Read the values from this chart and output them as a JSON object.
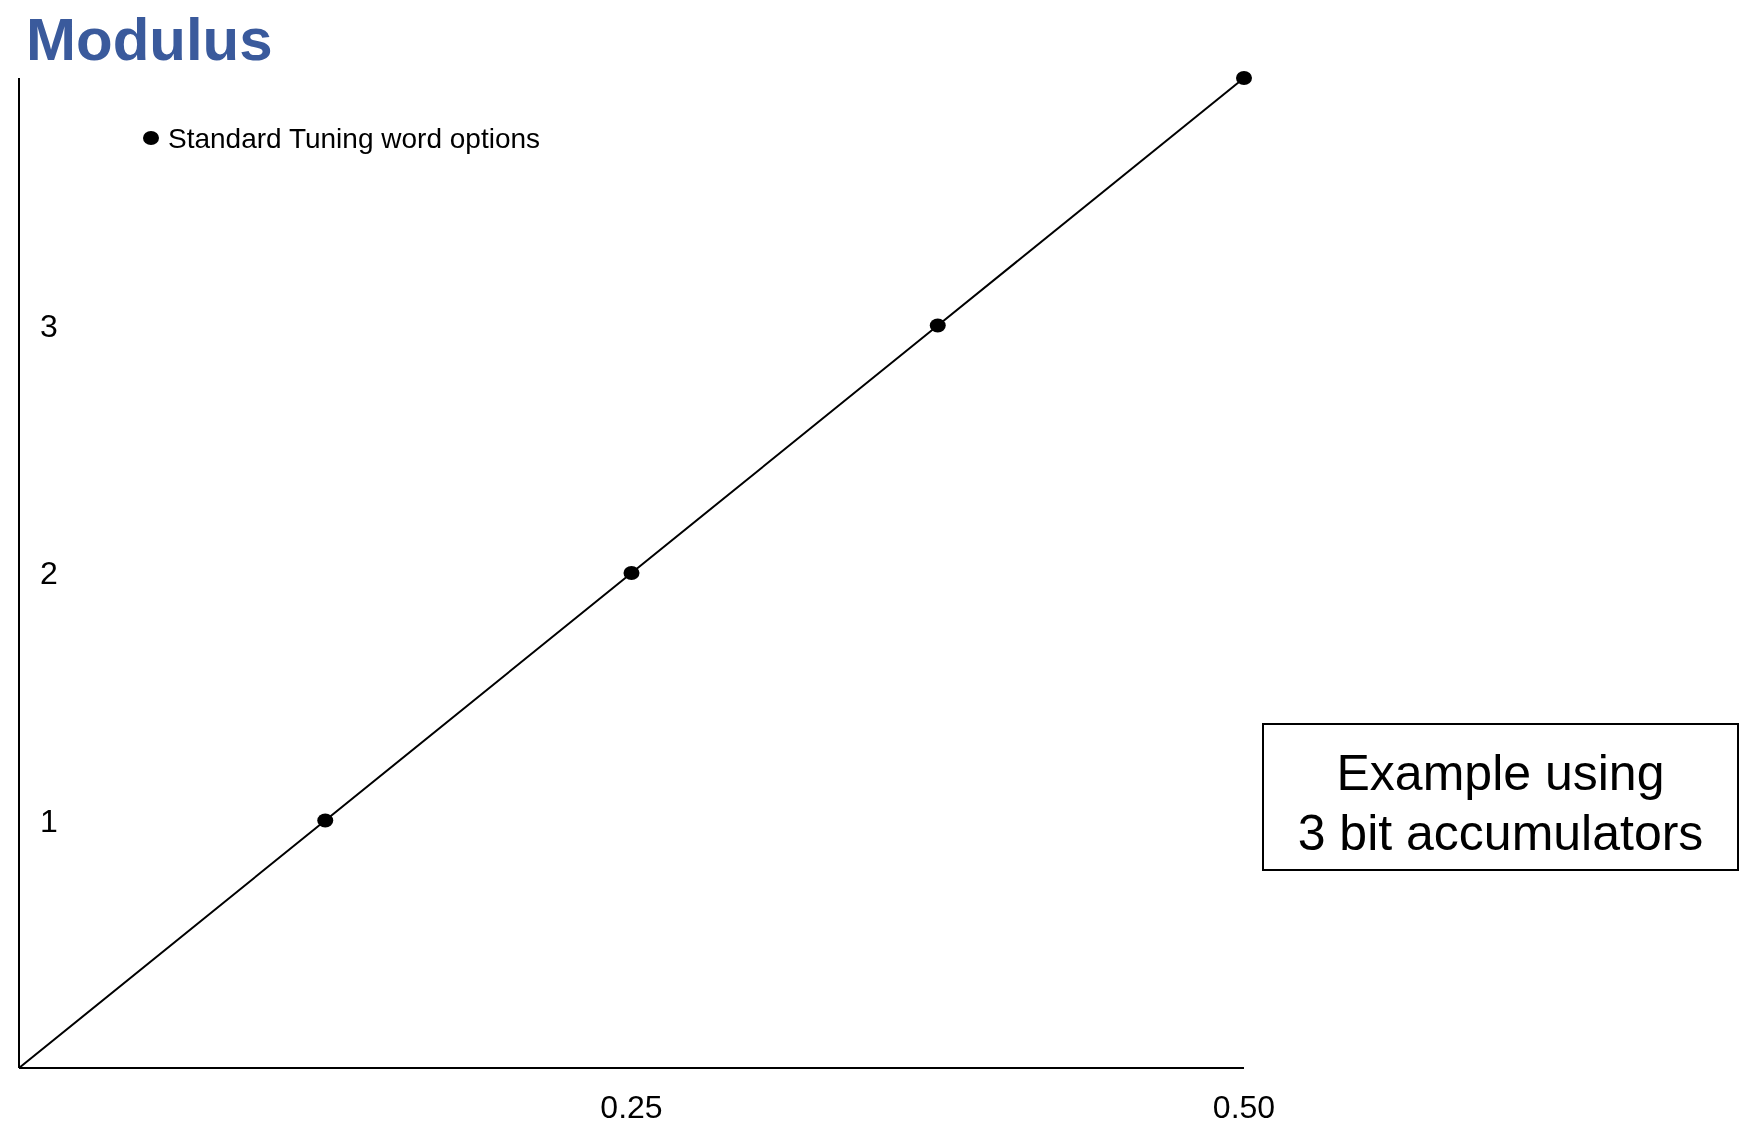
{
  "chart_data": {
    "type": "scatter",
    "title": "Modulus",
    "xlim": [
      0,
      0.5
    ],
    "ylim": [
      0,
      4
    ],
    "xticks": [
      0.25,
      {
        "value": 0.5,
        "label": "0.50"
      }
    ],
    "yticks": [
      1,
      2,
      3
    ],
    "grid": false,
    "legend": "top left",
    "series": [
      {
        "type": "line",
        "marker": "none",
        "color": "#000000",
        "x": [
          0,
          0.125,
          0.25,
          0.375,
          0.5
        ],
        "values": [
          0,
          1,
          2,
          3,
          4
        ]
      },
      {
        "marker": "circle",
        "name": "Standard Tuning word options",
        "color": "#000000",
        "x": [
          0.125,
          0.25,
          0.375,
          0.5
        ],
        "values": [
          1,
          2,
          3,
          4
        ]
      }
    ],
    "annotations": [
      "Example using\n3 bit accumulators"
    ]
  }
}
